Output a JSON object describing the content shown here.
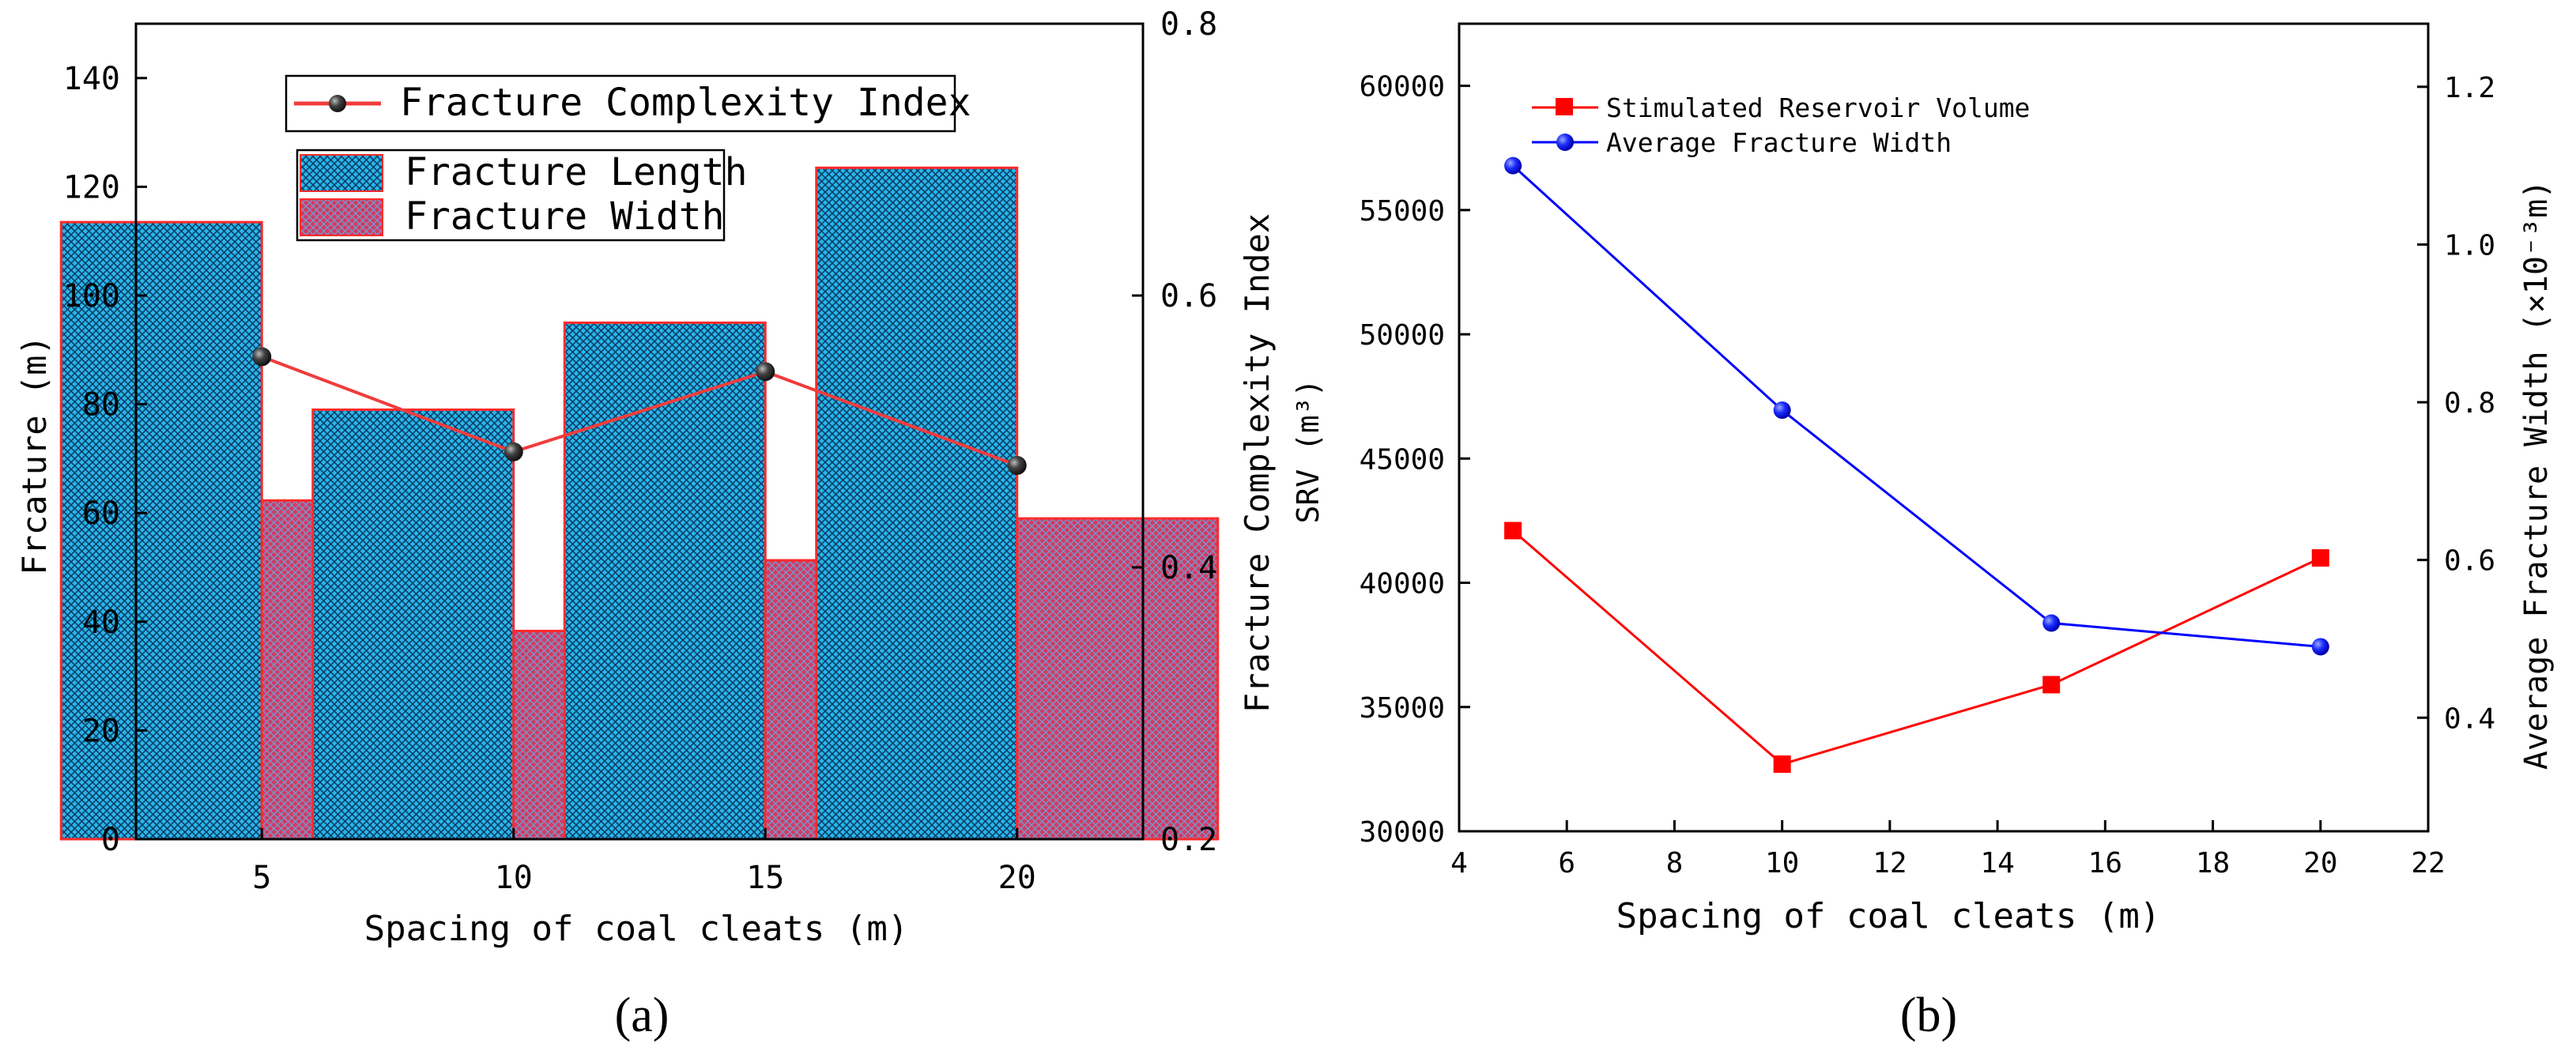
{
  "colors": {
    "bar_length": "#22aadd",
    "bar_width": "#c8325a",
    "bar_edge": "#ff2a2a",
    "index_line": "#f03c3c",
    "index_marker": "#222222",
    "srv": "#ff0000",
    "afw": "#0000ff",
    "axis": "#000000"
  },
  "chart_data": [
    {
      "type": "bar",
      "panel_label": "(a)",
      "title": "",
      "xlabel": "Spacing of coal cleats (m)",
      "ylabel": "Frcature (m)",
      "y2label": "Fracture Complexity Index",
      "categories": [
        "5",
        "10",
        "15",
        "20"
      ],
      "ylim": [
        0,
        150
      ],
      "yticks": [
        0,
        20,
        40,
        60,
        80,
        100,
        120,
        140
      ],
      "ytick_labels": [
        "0",
        "20",
        "40",
        "60",
        "80",
        "100",
        "120",
        "140"
      ],
      "y2lim": [
        0.2,
        0.8
      ],
      "y2ticks": [
        0.2,
        0.4,
        0.6,
        0.8
      ],
      "y2tick_labels": [
        "0.2",
        "0.4",
        "0.6",
        "0.8"
      ],
      "series": [
        {
          "name": "Fracture Length",
          "kind": "bar",
          "axis": "left",
          "values": [
            113.5,
            79,
            95,
            123.5
          ]
        },
        {
          "name": "Fracture Width",
          "kind": "bar",
          "axis": "left",
          "values": [
            62.3,
            38.3,
            51.3,
            59
          ]
        },
        {
          "name": "Fracture Complexity Index",
          "kind": "line",
          "axis": "right",
          "values": [
            0.555,
            0.485,
            0.544,
            0.475
          ]
        }
      ],
      "legend": {
        "position": "top",
        "items": [
          "Fracture Complexity Index",
          "Fracture Length",
          "Fracture Width"
        ]
      }
    },
    {
      "type": "line",
      "panel_label": "(b)",
      "title": "",
      "xlabel": "Spacing of coal cleats (m)",
      "ylabel": "SRV (m³)",
      "y2label": "Average Fracture Width (×10⁻³m)",
      "x": [
        5,
        10,
        15,
        20
      ],
      "xlim": [
        4,
        22
      ],
      "xticks": [
        4,
        6,
        8,
        10,
        12,
        14,
        16,
        18,
        20,
        22
      ],
      "xtick_labels": [
        "4",
        "6",
        "8",
        "10",
        "12",
        "14",
        "16",
        "18",
        "20",
        "22"
      ],
      "ylim": [
        30000,
        62500
      ],
      "yticks": [
        30000,
        35000,
        40000,
        45000,
        50000,
        55000,
        60000
      ],
      "ytick_labels": [
        "30000",
        "35000",
        "40000",
        "45000",
        "50000",
        "55000",
        "60000"
      ],
      "y2lim": [
        0.256,
        1.28
      ],
      "y2ticks": [
        0.4,
        0.6,
        0.8,
        1.0,
        1.2
      ],
      "y2tick_labels": [
        "0.4",
        "0.6",
        "0.8",
        "1.0",
        "1.2"
      ],
      "series": [
        {
          "name": "Stimulated Reservoir Volume",
          "axis": "left",
          "marker": "square",
          "values": [
            42100,
            32700,
            35900,
            41000
          ]
        },
        {
          "name": "Average Fracture Width",
          "axis": "right",
          "marker": "circle",
          "values": [
            1.1,
            0.79,
            0.52,
            0.49
          ]
        }
      ],
      "legend": {
        "position": "top-left",
        "items": [
          "Stimulated Reservoir Volume",
          "Average Fracture Width"
        ]
      }
    }
  ]
}
